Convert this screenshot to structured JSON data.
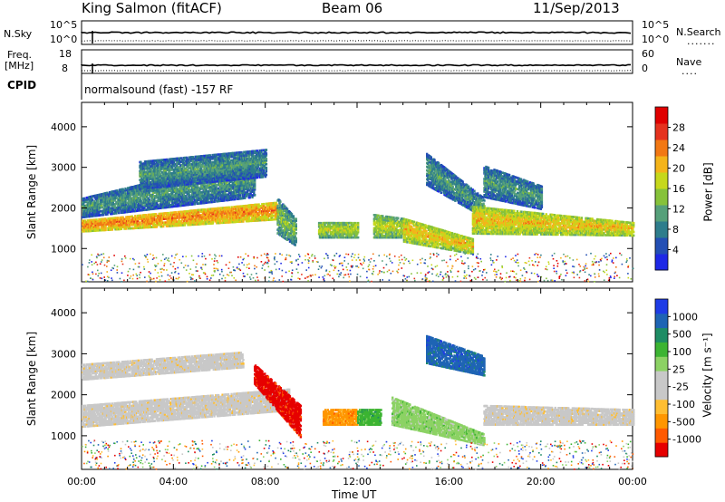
{
  "header": {
    "station": "King Salmon (fitACF)",
    "beam": "Beam 06",
    "date": "11/Sep/2013"
  },
  "top_panels": {
    "nsky_label": "N.Sky",
    "nsky_ticks": [
      "10^5",
      "10^0"
    ],
    "nsearch_label": "N.Search",
    "nsearch_ticks": [
      "10^5",
      "10^0"
    ],
    "freq_label_line1": "Freq.",
    "freq_label_line2": "[MHz]",
    "freq_ticks": [
      "18",
      "8"
    ],
    "nave_label": "Nave",
    "nave_ticks": [
      "60",
      "0"
    ],
    "cpid_label": "CPID",
    "cpid_text": "normalsound (fast) -157 RF"
  },
  "chart_data": [
    {
      "type": "heatmap",
      "name": "power",
      "ylabel": "Slant Range [km]",
      "yticks": [
        1000,
        2000,
        3000,
        4000
      ],
      "ylim": [
        180,
        4600
      ],
      "xlim": [
        0,
        24
      ],
      "colorbar_label": "Power [dB]",
      "colorbar_ticks": [
        "4",
        "8",
        "12",
        "16",
        "20",
        "24",
        "28"
      ],
      "colorbar_colors": [
        "#1e28e6",
        "#234fb4",
        "#2e7d8c",
        "#56a07a",
        "#86c23a",
        "#c6d81c",
        "#f4b41a",
        "#f27814",
        "#e5321e",
        "#e00000"
      ],
      "bands": [
        {
          "t0": 0.0,
          "t1": 8.5,
          "r0": 1450,
          "r1": 1750,
          "r0_end": 1750,
          "r1_end": 2200,
          "level": 5
        },
        {
          "t0": 0.0,
          "t1": 7.5,
          "r0": 1800,
          "r1": 2300,
          "r0_end": 2300,
          "r1_end": 3300,
          "level": 1
        },
        {
          "t0": 2.5,
          "t1": 8.0,
          "r0": 2500,
          "r1": 3200,
          "r0_end": 2800,
          "r1_end": 3500,
          "level": 1
        },
        {
          "t0": 8.5,
          "t1": 9.3,
          "r0": 1400,
          "r1": 2300,
          "r0_end": 1100,
          "r1_end": 1800,
          "level": 2
        },
        {
          "t0": 10.3,
          "t1": 12.0,
          "r0": 1300,
          "r1": 1700,
          "r0_end": 1300,
          "r1_end": 1700,
          "level": 3
        },
        {
          "t0": 12.7,
          "t1": 14.0,
          "r0": 1300,
          "r1": 1900,
          "r0_end": 1300,
          "r1_end": 1800,
          "level": 3
        },
        {
          "t0": 14.0,
          "t1": 17.0,
          "r0": 1200,
          "r1": 1800,
          "r0_end": 900,
          "r1_end": 1300,
          "level": 4
        },
        {
          "t0": 15.0,
          "t1": 17.5,
          "r0": 2600,
          "r1": 3400,
          "r0_end": 1800,
          "r1_end": 2300,
          "level": 1
        },
        {
          "t0": 17.0,
          "t1": 24.0,
          "r0": 1400,
          "r1": 2100,
          "r0_end": 1350,
          "r1_end": 1700,
          "level": 4
        },
        {
          "t0": 17.5,
          "t1": 20.0,
          "r0": 2300,
          "r1": 3100,
          "r0_end": 2000,
          "r1_end": 2600,
          "level": 1
        }
      ]
    },
    {
      "type": "heatmap",
      "name": "velocity",
      "ylabel": "Slant Range [km]",
      "yticks": [
        1000,
        2000,
        3000,
        4000
      ],
      "ylim": [
        180,
        4600
      ],
      "xlim": [
        0,
        24
      ],
      "xticks": [
        "00:00",
        "04:00",
        "08:00",
        "12:00",
        "16:00",
        "20:00",
        "00:00"
      ],
      "xlabel": "Time UT",
      "colorbar_label": "Velocity [m s⁻¹]",
      "colorbar_ticks": [
        "-1000",
        "-500",
        "-100",
        "-25",
        "25",
        "100",
        "500",
        "1000"
      ],
      "colorbar_colors": [
        "#e60000",
        "#ff5a00",
        "#ff9600",
        "#ffbe32",
        "#c8c8c8",
        "#c8c8c8",
        "#8cd264",
        "#3cb432",
        "#1e8c64",
        "#1e64b4",
        "#1e3ce6"
      ],
      "bands": [
        {
          "t0": 0.0,
          "t1": 9.0,
          "r0": 1250,
          "r1": 1800,
          "r0_end": 1650,
          "r1_end": 2200,
          "level": 4
        },
        {
          "t0": 0.0,
          "t1": 7.0,
          "r0": 2400,
          "r1": 2800,
          "r0_end": 2700,
          "r1_end": 3100,
          "level": 4
        },
        {
          "t0": 7.5,
          "t1": 9.5,
          "r0": 2300,
          "r1": 2800,
          "r0_end": 1000,
          "r1_end": 1800,
          "level": 0
        },
        {
          "t0": 10.5,
          "t1": 12.0,
          "r0": 1300,
          "r1": 1700,
          "r0_end": 1300,
          "r1_end": 1700,
          "level": 2
        },
        {
          "t0": 12.0,
          "t1": 13.0,
          "r0": 1300,
          "r1": 1700,
          "r0_end": 1300,
          "r1_end": 1700,
          "level": 7
        },
        {
          "t0": 13.5,
          "t1": 17.5,
          "r0": 1300,
          "r1": 2000,
          "r0_end": 800,
          "r1_end": 1100,
          "level": 6
        },
        {
          "t0": 15.0,
          "t1": 17.5,
          "r0": 2800,
          "r1": 3500,
          "r0_end": 2500,
          "r1_end": 3000,
          "level": 9
        },
        {
          "t0": 17.5,
          "t1": 24.0,
          "r0": 1300,
          "r1": 1800,
          "r0_end": 1300,
          "r1_end": 1700,
          "level": 4
        }
      ]
    }
  ]
}
